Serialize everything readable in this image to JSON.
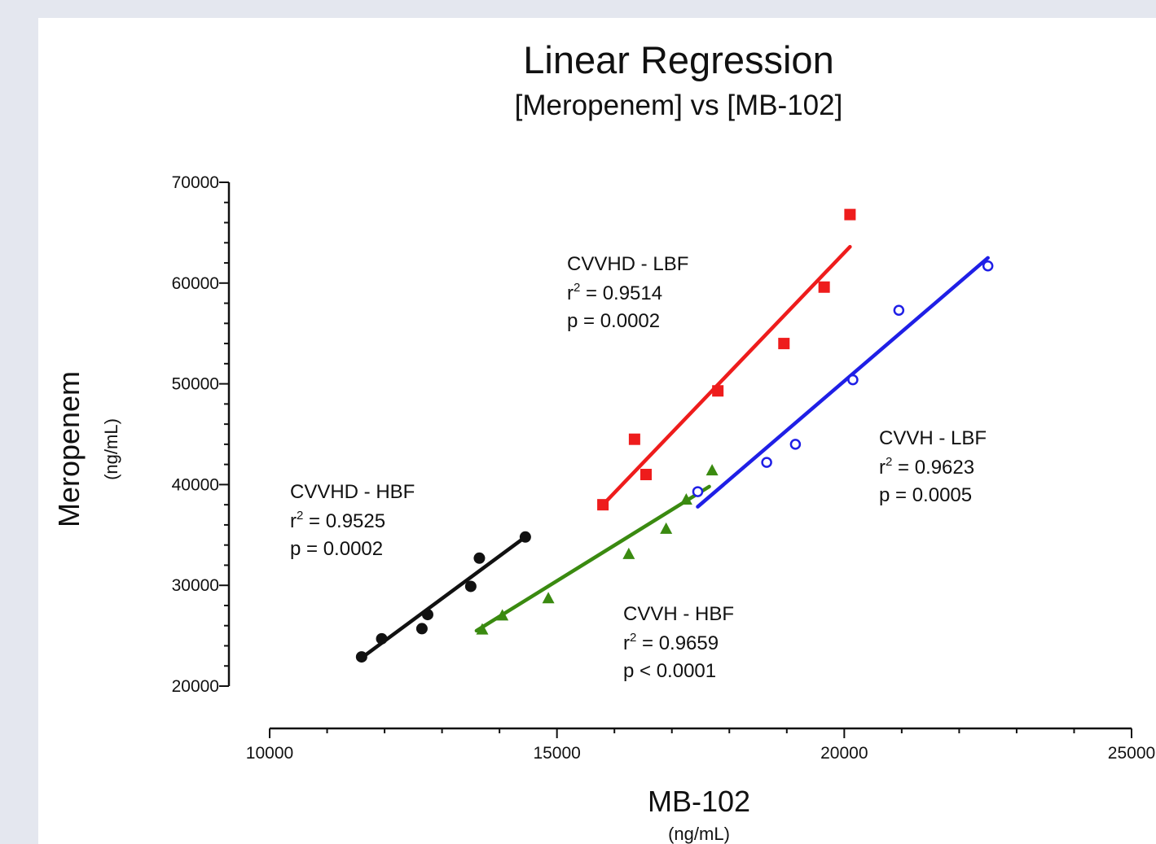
{
  "chart_data": {
    "type": "scatter",
    "title": "Linear Regression",
    "subtitle": "[Meropenem] vs [MB-102]",
    "xlabel": "MB-102",
    "xunit": "(ng/mL)",
    "ylabel": "Meropenem",
    "yunit": "(ng/mL)",
    "xlim": [
      10000,
      25000
    ],
    "ylim": [
      20000,
      70000
    ],
    "x_ticks": [
      "10000",
      "15000",
      "20000",
      "25000"
    ],
    "y_ticks": [
      "20000",
      "30000",
      "40000",
      "50000",
      "60000",
      "70000"
    ],
    "grid": false,
    "series": [
      {
        "color": "#111111",
        "marker": "circle-filled",
        "points": [
          [
            11600,
            22900
          ],
          [
            11950,
            24700
          ],
          [
            12650,
            25700
          ],
          [
            12750,
            27100
          ],
          [
            13500,
            29900
          ],
          [
            13650,
            32700
          ],
          [
            14450,
            34800
          ]
        ],
        "fit": [
          [
            11600,
            22800
          ],
          [
            14450,
            34800
          ]
        ],
        "annotation": [
          "CVVHD - HBF",
          "r",
          "2",
          " = 0.9525",
          "p = 0.0002"
        ]
      },
      {
        "color": "#ee1c1c",
        "marker": "square",
        "points": [
          [
            15800,
            38000
          ],
          [
            16350,
            44500
          ],
          [
            16550,
            41000
          ],
          [
            17800,
            49300
          ],
          [
            18950,
            54000
          ],
          [
            19650,
            59600
          ],
          [
            20100,
            66800
          ]
        ],
        "fit": [
          [
            15800,
            38000
          ],
          [
            20100,
            63600
          ]
        ],
        "annotation": [
          "CVVHD - LBF",
          "r",
          "2",
          " = 0.9514",
          "p = 0.0002"
        ]
      },
      {
        "color": "#1f1fe6",
        "marker": "circle-open",
        "points": [
          [
            17450,
            39300
          ],
          [
            18650,
            42200
          ],
          [
            19150,
            44000
          ],
          [
            20150,
            50400
          ],
          [
            20950,
            57300
          ],
          [
            22500,
            61700
          ]
        ],
        "fit": [
          [
            17450,
            37800
          ],
          [
            22500,
            62500
          ]
        ],
        "annotation": [
          "CVVH - LBF",
          "r",
          "2",
          " = 0.9623",
          "p = 0.0005"
        ]
      },
      {
        "color": "#3a8a10",
        "marker": "triangle",
        "points": [
          [
            13700,
            25600
          ],
          [
            14050,
            27000
          ],
          [
            14850,
            28700
          ],
          [
            16250,
            33100
          ],
          [
            16900,
            35600
          ],
          [
            17250,
            38500
          ],
          [
            17700,
            41400
          ]
        ],
        "fit": [
          [
            13600,
            25500
          ],
          [
            17650,
            39800
          ]
        ],
        "annotation": [
          "CVVH - HBF",
          "r",
          "2",
          " = 0.9659",
          "p < 0.0001"
        ]
      }
    ]
  }
}
